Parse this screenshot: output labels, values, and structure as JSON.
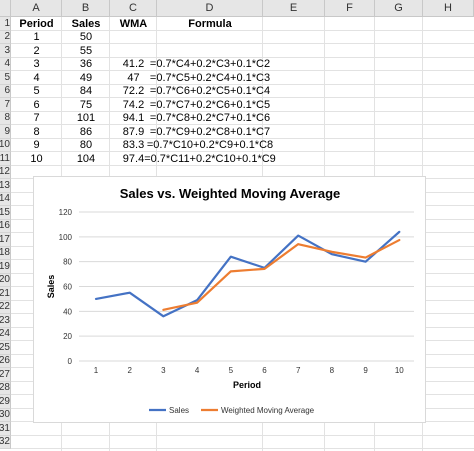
{
  "columns": [
    "A",
    "B",
    "C",
    "D",
    "E",
    "F",
    "G",
    "H"
  ],
  "rows": [
    "1",
    "2",
    "3",
    "4",
    "5",
    "6",
    "7",
    "8",
    "9",
    "10",
    "11",
    "12",
    "13",
    "14",
    "15",
    "16",
    "17",
    "18",
    "19",
    "20",
    "21",
    "22",
    "23",
    "24",
    "25",
    "26",
    "27",
    "28",
    "29",
    "30",
    "31",
    "32"
  ],
  "table": {
    "headers": [
      "Period",
      "Sales",
      "WMA",
      "Formula"
    ],
    "rows": [
      [
        "1",
        "50",
        "",
        ""
      ],
      [
        "2",
        "55",
        "",
        ""
      ],
      [
        "3",
        "36",
        "41.2",
        "=0.7*C4+0.2*C3+0.1*C2"
      ],
      [
        "4",
        "49",
        "47",
        "=0.7*C5+0.2*C4+0.1*C3"
      ],
      [
        "5",
        "84",
        "72.2",
        "=0.7*C6+0.2*C5+0.1*C4"
      ],
      [
        "6",
        "75",
        "74.2",
        "=0.7*C7+0.2*C6+0.1*C5"
      ],
      [
        "7",
        "101",
        "94.1",
        "=0.7*C8+0.2*C7+0.1*C6"
      ],
      [
        "8",
        "86",
        "87.9",
        "=0.7*C9+0.2*C8+0.1*C7"
      ],
      [
        "9",
        "80",
        "83.3",
        "=0.7*C10+0.2*C9+0.1*C8"
      ],
      [
        "10",
        "104",
        "97.4",
        "=0.7*C11+0.2*C10+0.1*C9"
      ]
    ]
  },
  "chart_data": {
    "type": "line",
    "title": "Sales vs. Weighted Moving Average",
    "xlabel": "Period",
    "ylabel": "Sales",
    "x": [
      1,
      2,
      3,
      4,
      5,
      6,
      7,
      8,
      9,
      10
    ],
    "ylim": [
      0,
      120
    ],
    "yticks": [
      0,
      20,
      40,
      60,
      80,
      100,
      120
    ],
    "grid": true,
    "legend": "bottom",
    "series": [
      {
        "name": "Sales",
        "color": "#4472c4",
        "values": [
          50,
          55,
          36,
          49,
          84,
          75,
          101,
          86,
          80,
          104
        ]
      },
      {
        "name": "Weighted Moving Average",
        "color": "#ed7d31",
        "values": [
          null,
          null,
          41.2,
          47,
          72.2,
          74.2,
          94.1,
          87.9,
          83.3,
          97.4
        ]
      }
    ]
  }
}
